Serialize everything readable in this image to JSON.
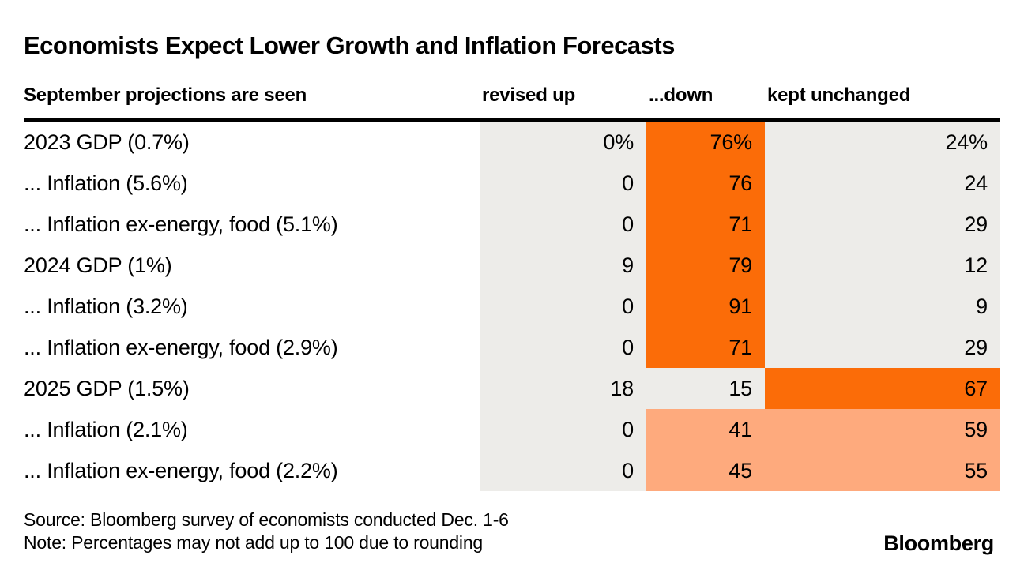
{
  "colors": {
    "orange": "#fb6c08",
    "light_orange": "#feaa7d",
    "cell_gray": "#edece9",
    "ink": "#000000",
    "background": "#ffffff"
  },
  "chart_data": {
    "type": "table",
    "title": "Economists Expect Lower Growth and Inflation Forecasts",
    "row_header_label": "September projections are seen",
    "column_headers": [
      "revised up",
      "...down",
      "kept unchanged"
    ],
    "legend_position": "none",
    "rows": [
      {
        "label": "2023 GDP (0.7%)",
        "revised_up": "0%",
        "down": "76%",
        "kept_unchanged": "24%",
        "values": [
          0,
          76,
          24
        ],
        "highlight": "down-strong"
      },
      {
        "label": "... Inflation (5.6%)",
        "revised_up": "0",
        "down": "76",
        "kept_unchanged": "24",
        "values": [
          0,
          76,
          24
        ],
        "highlight": "down-strong"
      },
      {
        "label": "... Inflation ex-energy, food (5.1%)",
        "revised_up": "0",
        "down": "71",
        "kept_unchanged": "29",
        "values": [
          0,
          71,
          29
        ],
        "highlight": "down-strong"
      },
      {
        "label": "2024 GDP (1%)",
        "revised_up": "9",
        "down": "79",
        "kept_unchanged": "12",
        "values": [
          9,
          79,
          12
        ],
        "highlight": "down-strong"
      },
      {
        "label": "... Inflation (3.2%)",
        "revised_up": "0",
        "down": "91",
        "kept_unchanged": "9",
        "values": [
          0,
          91,
          9
        ],
        "highlight": "down-strong"
      },
      {
        "label": "... Inflation ex-energy, food (2.9%)",
        "revised_up": "0",
        "down": "71",
        "kept_unchanged": "29",
        "values": [
          0,
          71,
          29
        ],
        "highlight": "down-strong"
      },
      {
        "label": "2025 GDP (1.5%)",
        "revised_up": "18",
        "down": "15",
        "kept_unchanged": "67",
        "values": [
          18,
          15,
          67
        ],
        "highlight": "unchanged-strong"
      },
      {
        "label": "... Inflation (2.1%)",
        "revised_up": "0",
        "down": "41",
        "kept_unchanged": "59",
        "values": [
          0,
          41,
          59
        ],
        "highlight": "down-and-unchanged-light"
      },
      {
        "label": "... Inflation ex-energy, food (2.2%)",
        "revised_up": "0",
        "down": "45",
        "kept_unchanged": "55",
        "values": [
          0,
          45,
          55
        ],
        "highlight": "down-and-unchanged-light"
      }
    ]
  },
  "footer": {
    "source": "Source: Bloomberg survey of economists conducted Dec. 1-6",
    "note": "Note: Percentages may not add up to 100 due to rounding",
    "logo": "Bloomberg"
  }
}
